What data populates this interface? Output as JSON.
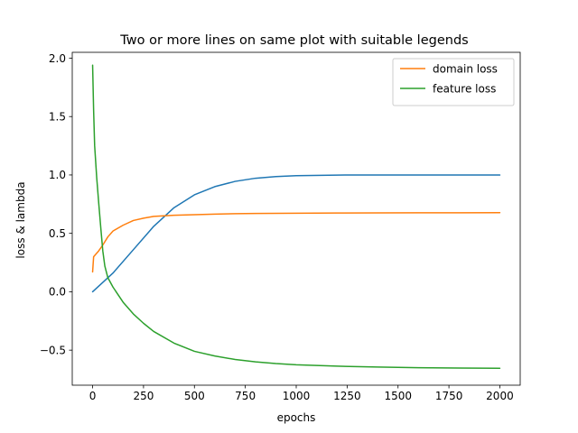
{
  "chart_data": {
    "type": "line",
    "title": "Two or more lines on same plot with suitable legends",
    "xlabel": "epochs",
    "ylabel": "loss & lambda",
    "xlim": [
      -100,
      2100
    ],
    "ylim": [
      -0.8,
      2.05
    ],
    "x_ticks": [
      0,
      250,
      500,
      750,
      1000,
      1250,
      1500,
      1750,
      2000
    ],
    "x_tick_labels": [
      "0",
      "250",
      "500",
      "750",
      "1000",
      "1250",
      "1500",
      "1750",
      "2000"
    ],
    "y_ticks": [
      -0.5,
      0.0,
      0.5,
      1.0,
      1.5,
      2.0
    ],
    "y_tick_labels": [
      "−0.5",
      "0.0",
      "0.5",
      "1.0",
      "1.5",
      "2.0"
    ],
    "grid": false,
    "legend_position": "top-right",
    "series": [
      {
        "legend": false,
        "color": "#1f77b4",
        "points": [
          [
            0,
            0.0
          ],
          [
            100,
            0.16
          ],
          [
            200,
            0.36
          ],
          [
            300,
            0.56
          ],
          [
            400,
            0.72
          ],
          [
            500,
            0.83
          ],
          [
            600,
            0.9
          ],
          [
            700,
            0.945
          ],
          [
            800,
            0.972
          ],
          [
            900,
            0.986
          ],
          [
            1000,
            0.994
          ],
          [
            1200,
            0.999
          ],
          [
            1400,
            1.0
          ],
          [
            1600,
            1.0
          ],
          [
            1800,
            1.0
          ],
          [
            2000,
            1.0
          ]
        ]
      },
      {
        "name": "domain loss",
        "legend": true,
        "color": "#ff7f0e",
        "points": [
          [
            0,
            0.17
          ],
          [
            5,
            0.3
          ],
          [
            15,
            0.32
          ],
          [
            30,
            0.35
          ],
          [
            50,
            0.4
          ],
          [
            75,
            0.47
          ],
          [
            100,
            0.52
          ],
          [
            150,
            0.57
          ],
          [
            200,
            0.61
          ],
          [
            250,
            0.63
          ],
          [
            300,
            0.645
          ],
          [
            400,
            0.655
          ],
          [
            500,
            0.66
          ],
          [
            600,
            0.665
          ],
          [
            700,
            0.668
          ],
          [
            800,
            0.67
          ],
          [
            1000,
            0.672
          ],
          [
            1200,
            0.674
          ],
          [
            1400,
            0.675
          ],
          [
            1600,
            0.676
          ],
          [
            1800,
            0.676
          ],
          [
            2000,
            0.677
          ]
        ]
      },
      {
        "name": "feature loss",
        "legend": true,
        "color": "#2ca02c",
        "points": [
          [
            0,
            1.94
          ],
          [
            5,
            1.55
          ],
          [
            10,
            1.25
          ],
          [
            20,
            0.98
          ],
          [
            30,
            0.76
          ],
          [
            40,
            0.55
          ],
          [
            50,
            0.35
          ],
          [
            60,
            0.22
          ],
          [
            75,
            0.12
          ],
          [
            100,
            0.04
          ],
          [
            150,
            -0.09
          ],
          [
            200,
            -0.19
          ],
          [
            250,
            -0.27
          ],
          [
            300,
            -0.34
          ],
          [
            400,
            -0.44
          ],
          [
            500,
            -0.51
          ],
          [
            600,
            -0.55
          ],
          [
            700,
            -0.58
          ],
          [
            800,
            -0.6
          ],
          [
            900,
            -0.615
          ],
          [
            1000,
            -0.625
          ],
          [
            1200,
            -0.637
          ],
          [
            1400,
            -0.645
          ],
          [
            1600,
            -0.65
          ],
          [
            1800,
            -0.653
          ],
          [
            2000,
            -0.655
          ]
        ]
      }
    ]
  }
}
